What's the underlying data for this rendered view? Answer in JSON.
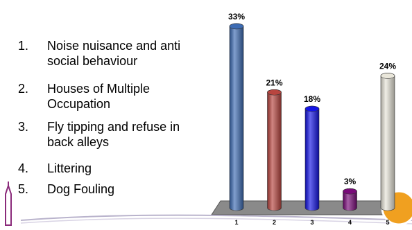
{
  "list": [
    {
      "number": "1.",
      "text": "Noise nuisance and anti social behaviour"
    },
    {
      "number": "2.",
      "text": "Houses of Multiple Occupation"
    },
    {
      "number": "3.",
      "text": "Fly tipping and refuse in back alleys"
    },
    {
      "number": "4.",
      "text": "Littering"
    },
    {
      "number": "5.",
      "text": "Dog Fouling"
    }
  ],
  "chart_data": {
    "type": "bar",
    "categories": [
      "1",
      "2",
      "3",
      "4",
      "5"
    ],
    "values": [
      33,
      21,
      18,
      3,
      24
    ],
    "value_labels": [
      "33%",
      "21%",
      "18%",
      "3%",
      "24%"
    ],
    "colors": [
      "#3d6cb4",
      "#b8453f",
      "#1414e6",
      "#7a0a7a",
      "#e9e6da"
    ]
  }
}
